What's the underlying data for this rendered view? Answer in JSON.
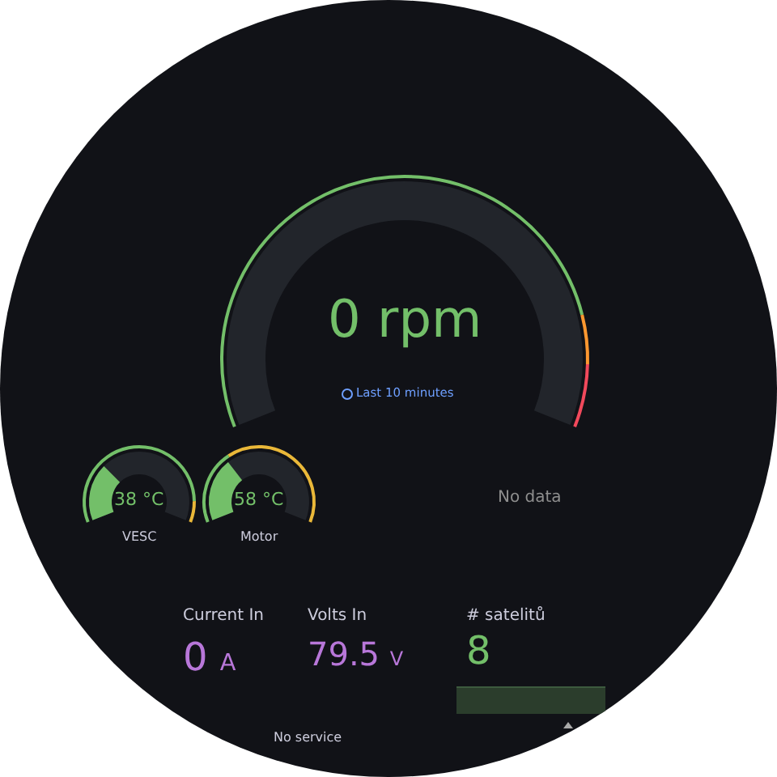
{
  "chart_data": [
    {
      "type": "other",
      "values": [
        0
      ],
      "value_labels": [
        "0 rpm"
      ],
      "color": "#73bf69",
      "annotations": [
        "Last 10 minutes"
      ]
    },
    {
      "type": "other",
      "title": "VESC",
      "values": [
        38
      ],
      "value_labels": [
        "38 °C"
      ],
      "color": "#73bf69"
    },
    {
      "type": "other",
      "title": "Motor",
      "values": [
        58
      ],
      "value_labels": [
        "58 °C"
      ],
      "color": "#73bf69"
    },
    {
      "type": "other",
      "annotations": [
        "No data"
      ]
    },
    {
      "type": "other",
      "title": "Current In",
      "values": [
        0
      ],
      "value_labels": [
        "0 A"
      ],
      "color": "#b877d9"
    },
    {
      "type": "other",
      "title": "Volts In",
      "values": [
        79.5
      ],
      "value_labels": [
        "79.5 V"
      ],
      "color": "#b877d9"
    },
    {
      "type": "other",
      "title": "# satelitů",
      "value_labels": [
        "8"
      ],
      "color": "#73bf69"
    },
    {
      "type": "other",
      "annotations": [
        "No service"
      ]
    }
  ]
}
